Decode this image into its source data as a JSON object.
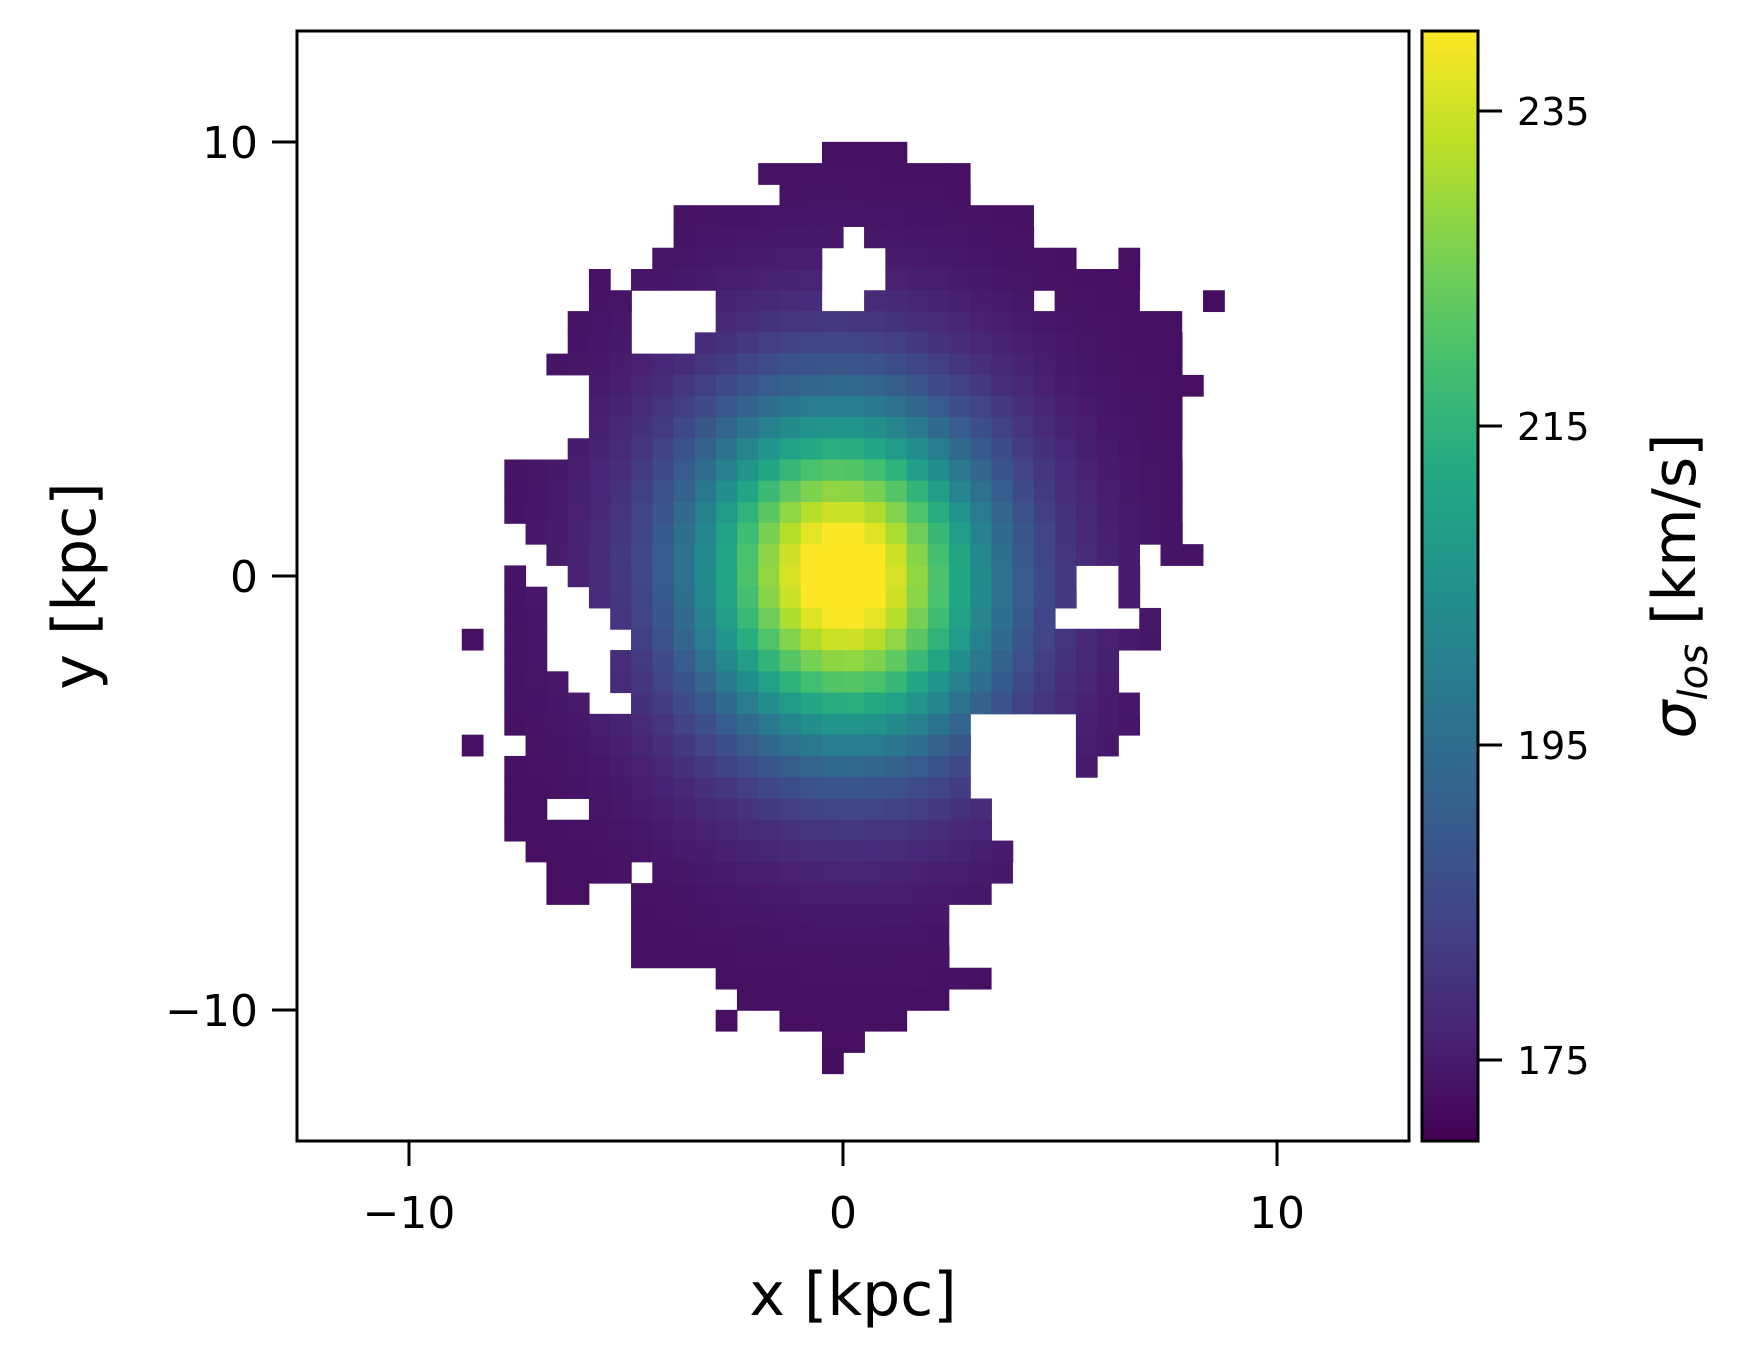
{
  "chart_data": {
    "type": "heatmap",
    "title": "",
    "xlabel": "x [kpc]",
    "ylabel": "y [kpc]",
    "xlim": [
      -12.87,
      12.87
    ],
    "ylim": [
      -12.87,
      12.87
    ],
    "xticks": [
      -10,
      0,
      10
    ],
    "yticks": [
      -10,
      0,
      10
    ],
    "xtick_labels": [
      "−10",
      "0",
      "10"
    ],
    "ytick_labels": [
      "−10",
      "0",
      "10"
    ],
    "grid": false,
    "colormap": "viridis",
    "pixel_size_kpc": 0.488,
    "colorbar": {
      "label_main": "σ",
      "label_sub": "los",
      "label_unit": " [km/s]",
      "range": [
        171.5,
        241.0
      ],
      "ticks": [
        175,
        195,
        215,
        235
      ],
      "tick_labels": [
        "175",
        "195",
        "215",
        "235"
      ]
    },
    "center_kpc": [
      0.0,
      0.0
    ],
    "peak_sigma": 238,
    "min_sigma": 172,
    "map_description_values": {
      "center_value": 238,
      "value_at_r3kpc": 205,
      "value_at_r6kpc": 183,
      "edge_value": 172
    },
    "mask_rows": [
      {
        "y": 9.76,
        "runs": [
          [
            -0.24,
            1.71
          ]
        ]
      },
      {
        "y": 9.27,
        "runs": [
          [
            -1.71,
            2.69
          ]
        ]
      },
      {
        "y": 8.78,
        "runs": [
          [
            -1.22,
            3.17
          ]
        ]
      },
      {
        "y": 8.3,
        "runs": [
          [
            -3.66,
            -3.17
          ],
          [
            -2.69,
            4.15
          ]
        ]
      },
      {
        "y": 7.81,
        "runs": [
          [
            -3.66,
            -0.24
          ],
          [
            0.73,
            4.63
          ]
        ]
      },
      {
        "y": 7.32,
        "runs": [
          [
            -4.15,
            -0.73
          ],
          [
            1.22,
            5.61
          ],
          [
            6.59,
            6.59
          ]
        ]
      },
      {
        "y": 6.83,
        "runs": [
          [
            -5.61,
            -5.61
          ],
          [
            -4.64,
            -0.73
          ],
          [
            1.22,
            6.59
          ]
        ]
      },
      {
        "y": 6.34,
        "runs": [
          [
            -5.61,
            -4.64
          ],
          [
            -2.69,
            -0.73
          ],
          [
            0.73,
            4.15
          ],
          [
            5.12,
            7.07
          ],
          [
            8.54,
            8.54
          ]
        ]
      },
      {
        "y": 5.86,
        "runs": [
          [
            -6.1,
            -5.12
          ],
          [
            -2.69,
            7.56
          ]
        ]
      },
      {
        "y": 5.37,
        "runs": [
          [
            -6.1,
            -5.12
          ],
          [
            -3.17,
            8.05
          ]
        ]
      },
      {
        "y": 4.88,
        "runs": [
          [
            -6.59,
            -6.1
          ],
          [
            -5.61,
            8.05
          ]
        ]
      },
      {
        "y": 4.39,
        "runs": [
          [
            -5.61,
            8.54
          ]
        ]
      },
      {
        "y": 3.9,
        "runs": [
          [
            -5.61,
            8.05
          ]
        ]
      },
      {
        "y": 3.42,
        "runs": [
          [
            -5.61,
            8.05
          ]
        ]
      },
      {
        "y": 2.93,
        "runs": [
          [
            -6.1,
            8.05
          ]
        ]
      },
      {
        "y": 2.44,
        "runs": [
          [
            -7.56,
            8.05
          ]
        ]
      },
      {
        "y": 1.95,
        "runs": [
          [
            -7.56,
            8.05
          ]
        ]
      },
      {
        "y": 1.46,
        "runs": [
          [
            -7.56,
            8.05
          ]
        ]
      },
      {
        "y": 0.98,
        "runs": [
          [
            -7.07,
            8.05
          ]
        ]
      },
      {
        "y": 0.49,
        "runs": [
          [
            -6.59,
            6.59
          ],
          [
            7.56,
            8.05
          ]
        ]
      },
      {
        "y": 0.0,
        "runs": [
          [
            -7.56,
            -7.56
          ],
          [
            -6.1,
            5.61
          ],
          [
            6.59,
            6.59
          ]
        ]
      },
      {
        "y": -0.49,
        "runs": [
          [
            -7.56,
            -7.07
          ],
          [
            -5.61,
            5.61
          ],
          [
            6.59,
            7.07
          ]
        ]
      },
      {
        "y": -0.98,
        "runs": [
          [
            -7.56,
            -7.07
          ],
          [
            -5.12,
            5.12
          ],
          [
            7.07,
            7.07
          ]
        ]
      },
      {
        "y": -1.46,
        "runs": [
          [
            -8.54,
            -8.54
          ],
          [
            -7.56,
            -6.59
          ],
          [
            -4.64,
            6.59
          ],
          [
            7.07,
            7.07
          ]
        ]
      },
      {
        "y": -1.95,
        "runs": [
          [
            -7.56,
            -6.59
          ],
          [
            -5.12,
            6.59
          ]
        ]
      },
      {
        "y": -2.44,
        "runs": [
          [
            -7.56,
            -6.1
          ],
          [
            -5.12,
            6.59
          ]
        ]
      },
      {
        "y": -2.93,
        "runs": [
          [
            -7.56,
            -5.61
          ],
          [
            -4.64,
            6.59
          ]
        ]
      },
      {
        "y": -3.42,
        "runs": [
          [
            -7.56,
            3.17
          ],
          [
            5.61,
            7.07
          ]
        ]
      },
      {
        "y": -3.9,
        "runs": [
          [
            -8.54,
            -8.54
          ],
          [
            -7.07,
            3.17
          ],
          [
            5.61,
            6.1
          ]
        ]
      },
      {
        "y": -4.39,
        "runs": [
          [
            -7.56,
            3.17
          ],
          [
            5.61,
            5.61
          ]
        ]
      },
      {
        "y": -4.88,
        "runs": [
          [
            -7.56,
            3.17
          ]
        ]
      },
      {
        "y": -5.37,
        "runs": [
          [
            -7.56,
            -7.07
          ],
          [
            -5.61,
            3.66
          ]
        ]
      },
      {
        "y": -5.86,
        "runs": [
          [
            -7.56,
            3.66
          ]
        ]
      },
      {
        "y": -6.34,
        "runs": [
          [
            -7.07,
            4.15
          ]
        ]
      },
      {
        "y": -6.83,
        "runs": [
          [
            -6.59,
            -5.12
          ],
          [
            -4.15,
            3.66
          ]
        ]
      },
      {
        "y": -7.32,
        "runs": [
          [
            -6.59,
            -6.1
          ],
          [
            -4.64,
            3.17
          ]
        ]
      },
      {
        "y": -7.81,
        "runs": [
          [
            -4.64,
            2.2
          ]
        ]
      },
      {
        "y": -8.3,
        "runs": [
          [
            -4.64,
            2.2
          ]
        ]
      },
      {
        "y": -8.78,
        "runs": [
          [
            -4.64,
            -4.15
          ],
          [
            -3.66,
            2.2
          ]
        ]
      },
      {
        "y": -9.27,
        "runs": [
          [
            -2.69,
            3.17
          ]
        ]
      },
      {
        "y": -9.76,
        "runs": [
          [
            -2.2,
            2.2
          ]
        ]
      },
      {
        "y": -10.24,
        "runs": [
          [
            -2.69,
            -2.69
          ],
          [
            -1.22,
            1.22
          ]
        ]
      },
      {
        "y": -10.73,
        "runs": [
          [
            -0.24,
            0.73
          ]
        ]
      },
      {
        "y": -11.22,
        "runs": [
          [
            -0.24,
            -0.24
          ]
        ]
      }
    ]
  }
}
